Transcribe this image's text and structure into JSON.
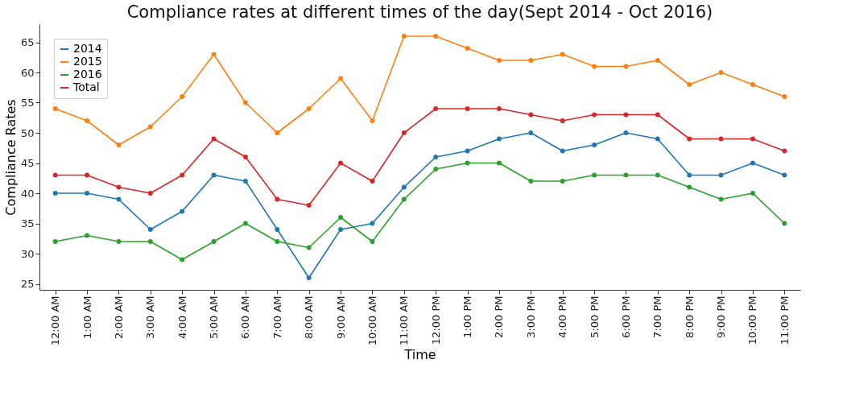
{
  "chart_data": {
    "type": "line",
    "title": "Compliance rates at different times of the day(Sept 2014 - Oct 2016)",
    "xlabel": "Time",
    "ylabel": "Compliance Rates",
    "categories": [
      "12:00 AM",
      "1:00 AM",
      "2:00 AM",
      "3:00 AM",
      "4:00 AM",
      "5:00 AM",
      "6:00 AM",
      "7:00 AM",
      "8:00 AM",
      "9:00 AM",
      "10:00 AM",
      "11:00 AM",
      "12:00 PM",
      "1:00 PM",
      "2:00 PM",
      "3:00 PM",
      "4:00 PM",
      "5:00 PM",
      "6:00 PM",
      "7:00 PM",
      "8:00 PM",
      "9:00 PM",
      "10:00 PM",
      "11:00 PM"
    ],
    "series": [
      {
        "name": "2014",
        "color": "#1f77b4",
        "values": [
          40,
          40,
          39,
          34,
          37,
          43,
          42,
          34,
          26,
          34,
          35,
          41,
          46,
          47,
          49,
          50,
          47,
          48,
          50,
          49,
          43,
          43,
          45,
          43
        ]
      },
      {
        "name": "2015",
        "color": "#ff7f0e",
        "values": [
          54,
          52,
          48,
          51,
          56,
          63,
          55,
          50,
          54,
          59,
          52,
          66,
          66,
          64,
          62,
          62,
          63,
          61,
          61,
          62,
          58,
          60,
          58,
          56
        ]
      },
      {
        "name": "2016",
        "color": "#2ca02c",
        "values": [
          32,
          33,
          32,
          32,
          29,
          32,
          35,
          32,
          31,
          36,
          32,
          39,
          44,
          45,
          45,
          42,
          42,
          43,
          43,
          43,
          41,
          39,
          40,
          35
        ]
      },
      {
        "name": "Total",
        "color": "#d62728",
        "values": [
          43,
          43,
          41,
          40,
          43,
          49,
          46,
          39,
          38,
          45,
          42,
          50,
          54,
          54,
          54,
          53,
          52,
          53,
          53,
          53,
          49,
          49,
          49,
          47
        ]
      }
    ],
    "ylim": [
      24,
      68
    ],
    "yticks": [
      25,
      30,
      35,
      40,
      45,
      50,
      55,
      60,
      65
    ],
    "grid": false,
    "legend": "top left",
    "marker": "circle",
    "line_style": "solid"
  }
}
